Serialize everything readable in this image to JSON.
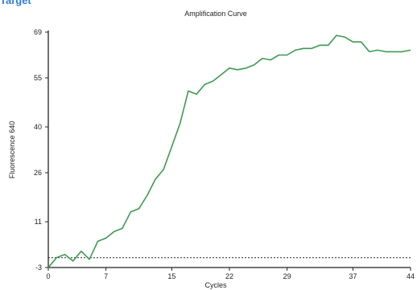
{
  "header": {
    "section_label": "Target"
  },
  "chart_data": {
    "type": "line",
    "title": "Amplification Curve",
    "xlabel": "Cycles",
    "ylabel": "Fluorescence 640",
    "xlim": [
      0,
      44
    ],
    "ylim": [
      -3,
      69
    ],
    "xticks": [
      "0",
      "7",
      "15",
      "22",
      "29",
      "37",
      "44"
    ],
    "yticks": [
      "-3",
      "11",
      "26",
      "40",
      "55",
      "69"
    ],
    "grid": false,
    "threshold": 0,
    "colors": {
      "series": "#3c9a52",
      "axis": "#222222",
      "threshold": "#222222"
    },
    "series": [
      {
        "x": [
          0,
          1,
          2,
          3,
          4,
          5,
          6,
          7,
          8,
          9,
          10,
          11,
          12,
          13,
          14,
          15,
          16,
          17,
          18,
          19,
          20,
          21,
          22,
          23,
          24,
          25,
          26,
          27,
          28,
          29,
          30,
          31,
          32,
          33,
          34,
          35,
          36,
          37,
          38,
          39,
          40,
          41,
          42,
          43,
          44
        ],
        "y": [
          -3,
          0,
          1,
          -1,
          2,
          -0.5,
          5,
          6,
          8,
          9,
          14,
          15,
          19,
          24,
          27,
          34,
          41,
          51,
          50,
          53,
          54,
          56,
          58,
          57.5,
          58,
          59,
          61,
          60.5,
          62,
          62,
          63.5,
          64,
          64,
          65,
          65,
          68,
          67.5,
          66,
          66,
          63,
          63.5,
          63,
          63,
          63,
          63.5
        ]
      }
    ]
  }
}
